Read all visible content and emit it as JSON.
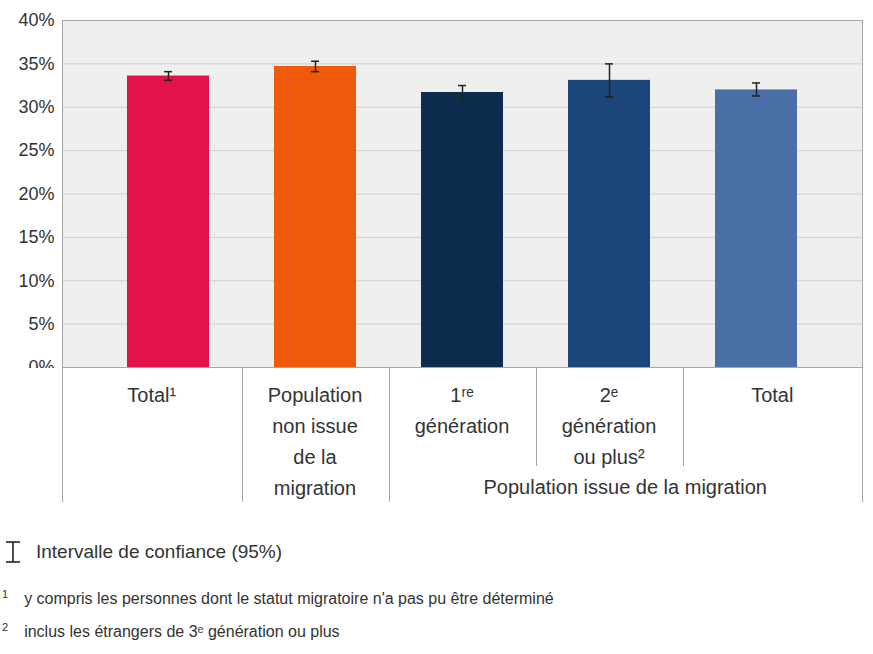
{
  "chart_data": {
    "type": "bar",
    "categories": [
      "Total¹",
      "Population non issue de la migration",
      "1ʳᵉ génération",
      "2ᵉ génération ou plus²",
      "Total"
    ],
    "values": [
      33.6,
      34.7,
      31.7,
      33.1,
      32.0
    ],
    "ci_low": [
      33.1,
      34.1,
      30.9,
      31.2,
      31.3
    ],
    "ci_high": [
      34.1,
      35.3,
      32.5,
      35.0,
      32.8
    ],
    "colors": [
      "#e4124a",
      "#ee5a0b",
      "#0e2d4e",
      "#1c467a",
      "#4a6ea6"
    ],
    "category_groups": [
      {
        "label": "Population issue de la migration",
        "from": "1ʳᵉ génération",
        "to": "Total"
      }
    ],
    "ylim": [
      0,
      40
    ],
    "yticks": [
      {
        "value": 0,
        "label": "0%"
      },
      {
        "value": 5,
        "label": "5%"
      },
      {
        "value": 10,
        "label": "10%"
      },
      {
        "value": 15,
        "label": "15%"
      },
      {
        "value": 20,
        "label": "20%"
      },
      {
        "value": 25,
        "label": "25%"
      },
      {
        "value": 30,
        "label": "30%"
      },
      {
        "value": 35,
        "label": "35%"
      },
      {
        "value": 40,
        "label": "40%"
      }
    ],
    "grid": true,
    "error_bar_label": "Intervalle de confiance (95%)",
    "footnotes": [
      {
        "mark": "1",
        "text": "y compris les personnes dont le statut migratoire n'a pas pu être déterminé"
      },
      {
        "mark": "2",
        "text": "inclus les étrangers de 3ᵉ génération ou plus"
      }
    ]
  }
}
